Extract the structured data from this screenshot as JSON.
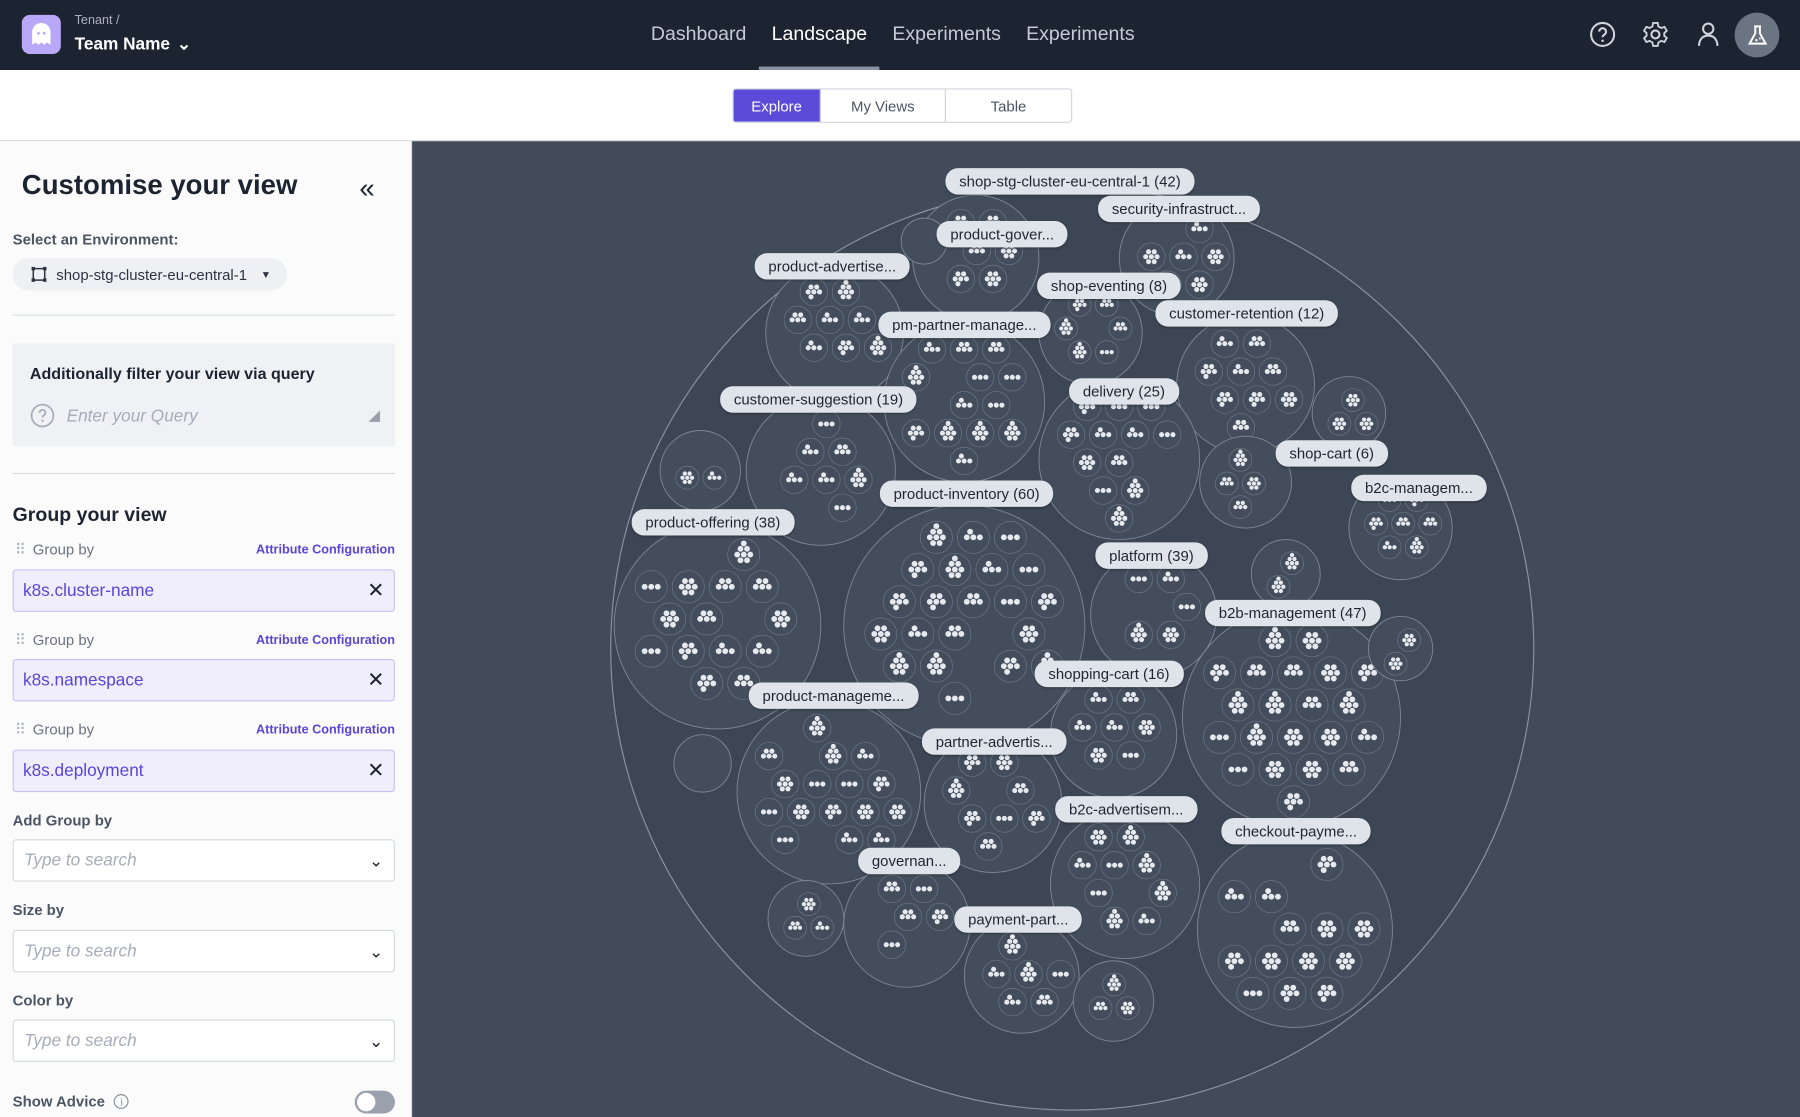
{
  "nav": {
    "tenant": "Tenant /",
    "team": "Team Name",
    "tabs": [
      {
        "label": "Dashboard"
      },
      {
        "label": "Landscape",
        "active": true
      },
      {
        "label": "Experiments"
      },
      {
        "label": "Experiments"
      }
    ],
    "icons": [
      "help-icon",
      "settings-icon",
      "user-icon",
      "flask-icon"
    ]
  },
  "subnav": {
    "tabs": [
      {
        "label": "Explore",
        "active": true
      },
      {
        "label": "My Views"
      },
      {
        "label": "Table"
      }
    ]
  },
  "panel": {
    "title": "Customise your view",
    "env_label": "Select an Environment:",
    "env_value": "shop-stg-cluster-eu-central-1",
    "query_title": "Additionally filter your view via query",
    "query_placeholder": "Enter your Query",
    "group_title": "Group your view",
    "groups": [
      {
        "label": "Group by",
        "link": "Attribute Configuration",
        "value": "k8s.cluster-name"
      },
      {
        "label": "Group by",
        "link": "Attribute Configuration",
        "value": "k8s.namespace"
      },
      {
        "label": "Group by",
        "link": "Attribute Configuration",
        "value": "k8s.deployment"
      }
    ],
    "add_group_label": "Add Group by",
    "add_group_placeholder": "Type to search",
    "size_label": "Size by",
    "size_placeholder": "Type to search",
    "color_label": "Color by",
    "color_placeholder": "Type to search",
    "advice_label": "Show Advice",
    "advice_on": false
  },
  "landscape": {
    "cluster": "shop-stg-cluster-eu-central-1 (42)",
    "namespaces": [
      "security-infrastruct...",
      "product-gover...",
      "product-advertise...",
      "shop-eventing (8)",
      "customer-retention (12)",
      "pm-partner-manage...",
      "customer-suggestion (19)",
      "delivery (25)",
      "shop-cart (6)",
      "b2c-managem...",
      "product-inventory (60)",
      "product-offering (38)",
      "platform (39)",
      "b2b-management (47)",
      "shopping-cart (16)",
      "product-manageme...",
      "partner-advertis...",
      "b2c-advertisem...",
      "checkout-payme...",
      "governan...",
      "payment-part..."
    ]
  },
  "colors": {
    "accent": "#5c4bd8",
    "nav_bg": "#1c2331",
    "canvas_bg": "#414b5a"
  }
}
